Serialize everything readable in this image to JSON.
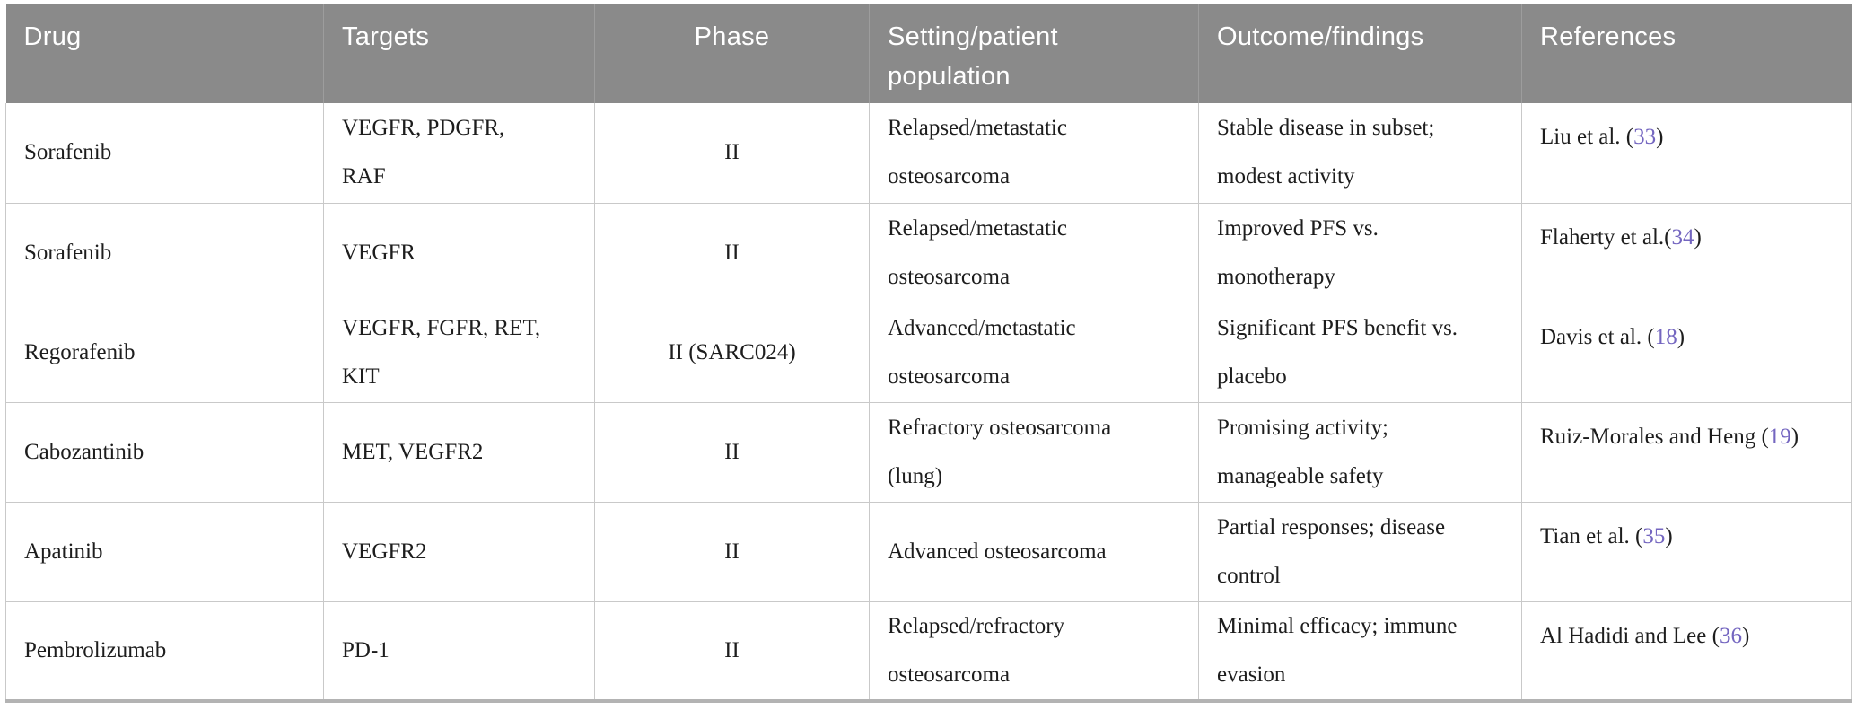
{
  "table": {
    "colors": {
      "header_bg": "#8a8a8a",
      "header_text": "#ffffff",
      "body_text": "#1d1d1d",
      "reference_link": "#7466c0",
      "cell_border": "#c9c9c9"
    },
    "columns": [
      {
        "label": "Drug"
      },
      {
        "label": "Targets"
      },
      {
        "label": "Phase"
      },
      {
        "label": "Setting/patient population"
      },
      {
        "label": "Outcome/findings"
      },
      {
        "label": "References"
      }
    ],
    "rows": [
      {
        "drug": "Sorafenib",
        "targets": "VEGFR, PDGFR,\nRAF",
        "phase": "II",
        "setting": "Relapsed/metastatic\nosteosarcoma",
        "outcome": "Stable disease in subset;\nmodest activity",
        "ref": {
          "prefix": "Liu et al. (",
          "num": "33",
          "suffix": ")"
        }
      },
      {
        "drug": "Sorafenib",
        "targets": "VEGFR",
        "phase": "II",
        "setting": "Relapsed/metastatic\nosteosarcoma",
        "outcome": "Improved PFS vs.\nmonotherapy",
        "ref": {
          "prefix": "Flaherty et al.(",
          "num": "34",
          "suffix": ")"
        }
      },
      {
        "drug": "Regorafenib",
        "targets": "VEGFR, FGFR, RET,\nKIT",
        "phase": "II (SARC024)",
        "setting": "Advanced/metastatic\nosteosarcoma",
        "outcome": "Significant PFS benefit vs.\nplacebo",
        "ref": {
          "prefix": "Davis et al. (",
          "num": "18",
          "suffix": ")"
        }
      },
      {
        "drug": "Cabozantinib",
        "targets": "MET, VEGFR2",
        "phase": "II",
        "setting": "Refractory osteosarcoma\n(lung)",
        "outcome": "Promising activity;\nmanageable safety",
        "ref": {
          "prefix": "Ruiz-Morales and Heng (",
          "num": "19",
          "suffix": ")"
        }
      },
      {
        "drug": "Apatinib",
        "targets": "VEGFR2",
        "phase": "II",
        "setting": "Advanced osteosarcoma",
        "outcome": "Partial responses; disease\ncontrol",
        "ref": {
          "prefix": "Tian et al. (",
          "num": "35",
          "suffix": ")"
        }
      },
      {
        "drug": "Pembrolizumab",
        "targets": "PD-1",
        "phase": "II",
        "setting": "Relapsed/refractory\nosteosarcoma",
        "outcome": "Minimal efficacy; immune\nevasion",
        "ref": {
          "prefix": "Al Hadidi and Lee (",
          "num": "36",
          "suffix": ")"
        }
      }
    ]
  }
}
